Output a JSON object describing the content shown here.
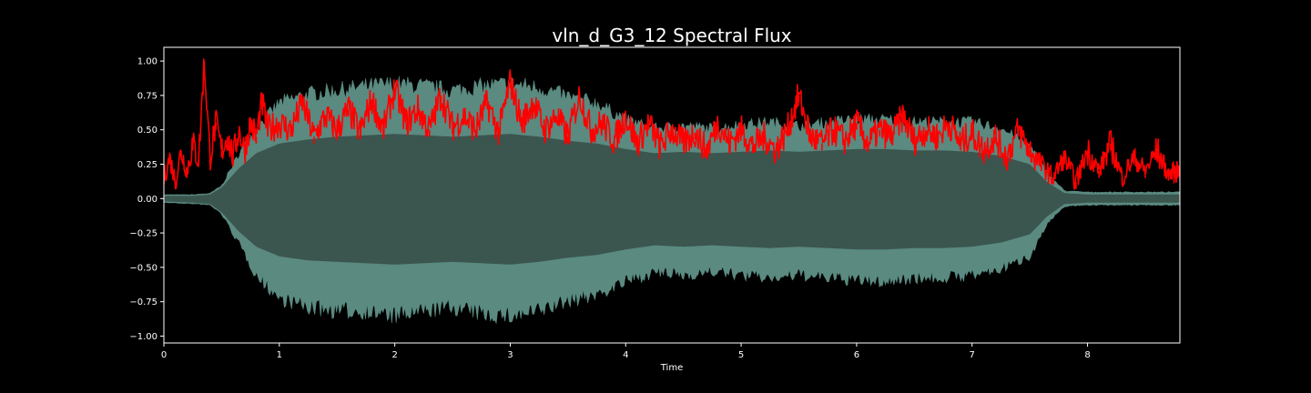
{
  "chart_data": {
    "type": "line",
    "title": "vln_d_G3_12 Spectral Flux",
    "xlabel": "Time",
    "ylabel": "",
    "xlim": [
      0,
      8.8
    ],
    "ylim": [
      -1.05,
      1.1
    ],
    "x_ticks": [
      0,
      1,
      2,
      3,
      4,
      5,
      6,
      7,
      8
    ],
    "y_ticks": [
      1.0,
      0.75,
      0.5,
      0.25,
      0.0,
      -0.25,
      -0.5,
      -0.75,
      -1.0
    ],
    "x_tick_labels": [
      "0",
      "1",
      "2",
      "3",
      "4",
      "5",
      "6",
      "7",
      "8"
    ],
    "y_tick_labels": [
      "1.00",
      "0.75",
      "0.50",
      "0.25",
      "0.00",
      "−0.25",
      "−0.50",
      "−0.75",
      "−1.00"
    ],
    "grid": false,
    "background": "#000000",
    "waveform": {
      "color_outer": "#5a8a80",
      "color_inner": "#3b554f",
      "x": [
        0,
        0.25,
        0.4,
        0.5,
        0.65,
        0.8,
        1.0,
        1.25,
        1.5,
        1.75,
        2.0,
        2.25,
        2.5,
        2.75,
        3.0,
        3.25,
        3.5,
        3.75,
        4.0,
        4.25,
        4.5,
        4.75,
        5.0,
        5.25,
        5.5,
        5.75,
        6.0,
        6.25,
        6.5,
        6.75,
        7.0,
        7.25,
        7.5,
        7.65,
        7.8,
        8.0,
        8.25,
        8.5,
        8.8
      ],
      "upper": [
        0.03,
        0.03,
        0.04,
        0.1,
        0.35,
        0.55,
        0.75,
        0.82,
        0.85,
        0.88,
        0.9,
        0.88,
        0.85,
        0.88,
        0.9,
        0.87,
        0.8,
        0.75,
        0.62,
        0.55,
        0.57,
        0.55,
        0.58,
        0.6,
        0.57,
        0.6,
        0.62,
        0.62,
        0.6,
        0.6,
        0.6,
        0.55,
        0.42,
        0.2,
        0.06,
        0.05,
        0.05,
        0.05,
        0.05
      ],
      "lower": [
        -0.03,
        -0.04,
        -0.05,
        -0.12,
        -0.35,
        -0.6,
        -0.78,
        -0.85,
        -0.88,
        -0.88,
        -0.92,
        -0.88,
        -0.85,
        -0.9,
        -0.92,
        -0.88,
        -0.8,
        -0.75,
        -0.65,
        -0.58,
        -0.6,
        -0.57,
        -0.6,
        -0.62,
        -0.6,
        -0.62,
        -0.64,
        -0.65,
        -0.62,
        -0.62,
        -0.6,
        -0.55,
        -0.45,
        -0.2,
        -0.06,
        -0.05,
        -0.05,
        -0.05,
        -0.05
      ],
      "inner_upper": [
        0.02,
        0.02,
        0.03,
        0.08,
        0.22,
        0.33,
        0.4,
        0.43,
        0.45,
        0.46,
        0.47,
        0.46,
        0.45,
        0.46,
        0.47,
        0.45,
        0.42,
        0.4,
        0.36,
        0.33,
        0.34,
        0.33,
        0.34,
        0.35,
        0.34,
        0.35,
        0.36,
        0.36,
        0.35,
        0.35,
        0.34,
        0.31,
        0.25,
        0.12,
        0.04,
        0.03,
        0.03,
        0.03,
        0.03
      ],
      "inner_lower": [
        -0.02,
        -0.03,
        -0.04,
        -0.1,
        -0.24,
        -0.35,
        -0.42,
        -0.45,
        -0.46,
        -0.47,
        -0.48,
        -0.47,
        -0.46,
        -0.47,
        -0.48,
        -0.46,
        -0.43,
        -0.41,
        -0.37,
        -0.34,
        -0.35,
        -0.34,
        -0.35,
        -0.36,
        -0.35,
        -0.36,
        -0.37,
        -0.37,
        -0.36,
        -0.36,
        -0.35,
        -0.32,
        -0.26,
        -0.13,
        -0.04,
        -0.03,
        -0.03,
        -0.03,
        -0.03
      ]
    },
    "flux": {
      "color": "#ff0000",
      "x": [
        0,
        0.05,
        0.1,
        0.15,
        0.2,
        0.25,
        0.3,
        0.35,
        0.4,
        0.45,
        0.5,
        0.55,
        0.6,
        0.65,
        0.7,
        0.75,
        0.8,
        0.85,
        0.9,
        1.0,
        1.1,
        1.2,
        1.3,
        1.4,
        1.5,
        1.6,
        1.7,
        1.8,
        1.9,
        2.0,
        2.1,
        2.2,
        2.3,
        2.4,
        2.5,
        2.6,
        2.7,
        2.8,
        2.9,
        3.0,
        3.1,
        3.2,
        3.3,
        3.4,
        3.5,
        3.6,
        3.7,
        3.8,
        3.9,
        4.0,
        4.1,
        4.2,
        4.3,
        4.4,
        4.5,
        4.6,
        4.7,
        4.8,
        4.9,
        5.0,
        5.1,
        5.2,
        5.3,
        5.4,
        5.5,
        5.6,
        5.7,
        5.8,
        5.9,
        6.0,
        6.1,
        6.2,
        6.3,
        6.4,
        6.5,
        6.6,
        6.7,
        6.8,
        6.9,
        7.0,
        7.1,
        7.2,
        7.3,
        7.4,
        7.5,
        7.6,
        7.7,
        7.8,
        7.9,
        8.0,
        8.1,
        8.2,
        8.3,
        8.4,
        8.5,
        8.6,
        8.7,
        8.8
      ],
      "y": [
        0.15,
        0.3,
        0.12,
        0.35,
        0.2,
        0.4,
        0.28,
        1.0,
        0.3,
        0.55,
        0.35,
        0.45,
        0.3,
        0.5,
        0.35,
        0.55,
        0.45,
        0.7,
        0.5,
        0.55,
        0.5,
        0.7,
        0.45,
        0.6,
        0.5,
        0.65,
        0.48,
        0.72,
        0.5,
        0.8,
        0.55,
        0.65,
        0.5,
        0.75,
        0.52,
        0.6,
        0.5,
        0.7,
        0.48,
        0.85,
        0.55,
        0.7,
        0.5,
        0.6,
        0.45,
        0.75,
        0.5,
        0.55,
        0.42,
        0.6,
        0.4,
        0.55,
        0.38,
        0.5,
        0.4,
        0.48,
        0.35,
        0.55,
        0.4,
        0.5,
        0.38,
        0.45,
        0.35,
        0.5,
        0.75,
        0.45,
        0.4,
        0.5,
        0.42,
        0.55,
        0.4,
        0.5,
        0.45,
        0.6,
        0.42,
        0.5,
        0.45,
        0.55,
        0.4,
        0.48,
        0.35,
        0.45,
        0.3,
        0.5,
        0.35,
        0.25,
        0.15,
        0.3,
        0.12,
        0.35,
        0.2,
        0.4,
        0.15,
        0.3,
        0.2,
        0.35,
        0.18,
        0.2
      ]
    }
  }
}
